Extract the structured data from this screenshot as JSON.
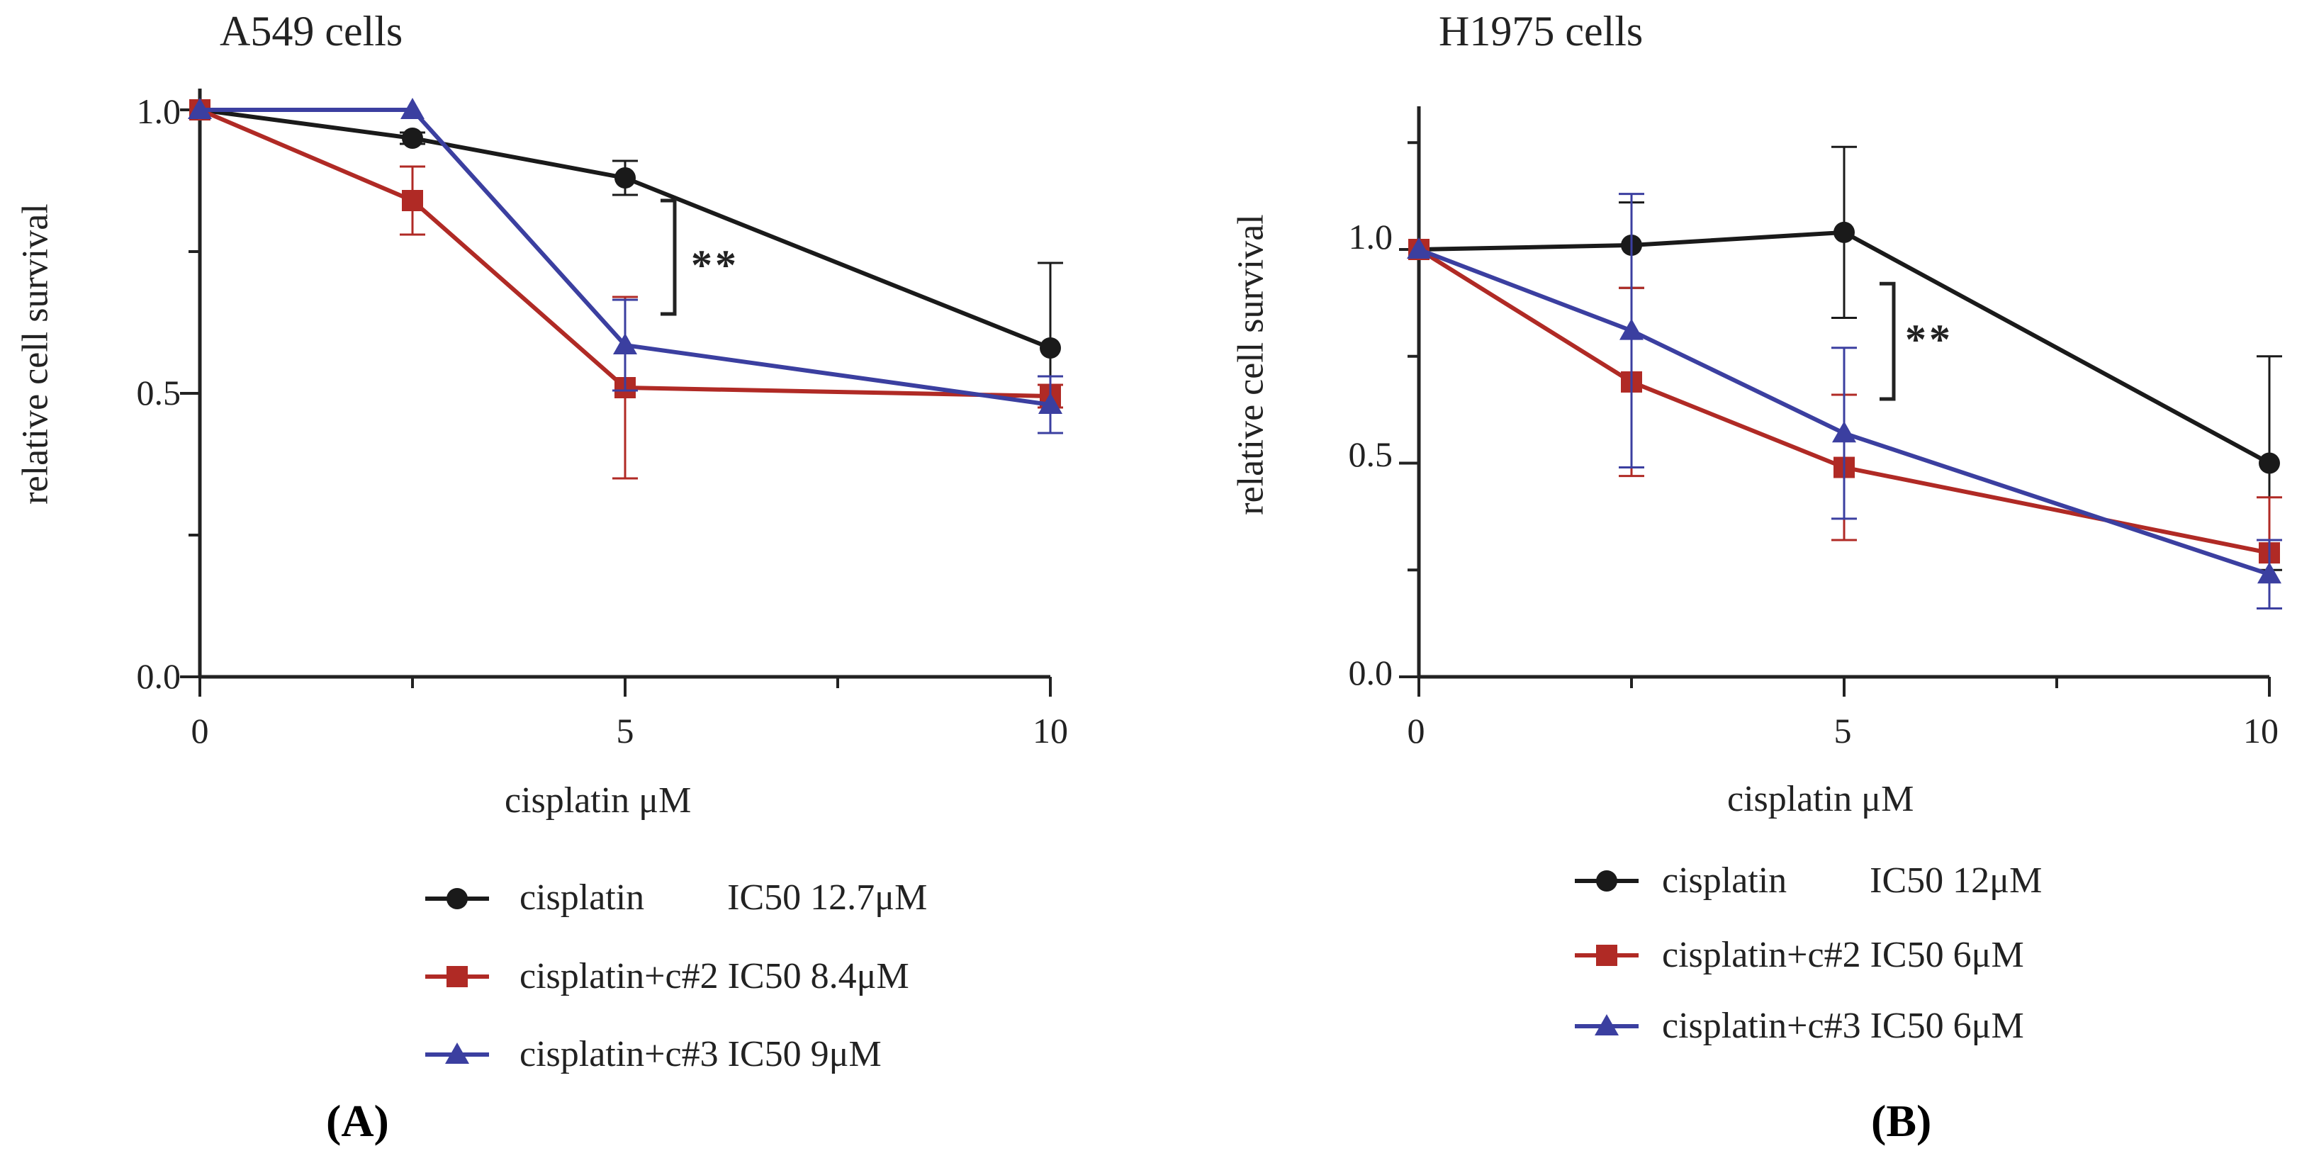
{
  "chart_data": [
    {
      "panel": "A",
      "type": "line",
      "title": "A549 cells",
      "xlabel": "cisplatin μM",
      "ylabel": "relative cell survival",
      "x": [
        0,
        2.5,
        5,
        10
      ],
      "xticks": [
        "0",
        "5",
        "10"
      ],
      "yticks": [
        "0.0",
        "0.5",
        "1.0"
      ],
      "xlim": [
        0,
        10
      ],
      "ylim": [
        0,
        1.0
      ],
      "series": [
        {
          "name": "cisplatin",
          "label": "cisplatin         IC50 12.7μM",
          "color": "#1a1a1a",
          "marker": "circle",
          "values": [
            1.0,
            0.95,
            0.88,
            0.58
          ],
          "errors": [
            0.0,
            0.01,
            0.03,
            0.15
          ]
        },
        {
          "name": "cisplatin+c#2",
          "label": "cisplatin+c#2 IC50 8.4μM",
          "color": "#b02a25",
          "marker": "square",
          "values": [
            1.0,
            0.84,
            0.51,
            0.495
          ],
          "errors": [
            0.0,
            0.06,
            0.16,
            0.02
          ]
        },
        {
          "name": "cisplatin+c#3",
          "label": "cisplatin+c#3 IC50 9μM",
          "color": "#3b3fa0",
          "marker": "triangle",
          "values": [
            1.0,
            1.0,
            0.585,
            0.48
          ],
          "errors": [
            0.0,
            0.0,
            0.08,
            0.05
          ]
        }
      ],
      "significance": {
        "text": "**",
        "x": 5
      },
      "panel_label": "(A)"
    },
    {
      "panel": "B",
      "type": "line",
      "title": "H1975 cells",
      "xlabel": "cisplatin μM",
      "ylabel": "relative cell survival",
      "x": [
        0,
        2.5,
        5,
        10
      ],
      "xticks": [
        "0",
        "5",
        "10"
      ],
      "yticks": [
        "0.0",
        "0.5",
        "1.0"
      ],
      "xlim": [
        0,
        10
      ],
      "ylim": [
        0,
        1.3
      ],
      "series": [
        {
          "name": "cisplatin",
          "label": "cisplatin         IC50 12μM",
          "color": "#1a1a1a",
          "marker": "circle",
          "values": [
            1.0,
            1.01,
            1.04,
            0.5
          ],
          "errors": [
            0.0,
            0.1,
            0.2,
            0.25
          ]
        },
        {
          "name": "cisplatin+c#2",
          "label": "cisplatin+c#2 IC50 6μM",
          "color": "#b02a25",
          "marker": "square",
          "values": [
            1.0,
            0.69,
            0.49,
            0.29
          ],
          "errors": [
            0.0,
            0.22,
            0.17,
            0.13
          ]
        },
        {
          "name": "cisplatin+c#3",
          "label": "cisplatin+c#3 IC50 6μM",
          "color": "#3b3fa0",
          "marker": "triangle",
          "values": [
            1.0,
            0.81,
            0.57,
            0.24
          ],
          "errors": [
            0.0,
            0.32,
            0.2,
            0.08
          ]
        }
      ],
      "significance": {
        "text": "**",
        "x": 5
      },
      "panel_label": "(B)"
    }
  ]
}
